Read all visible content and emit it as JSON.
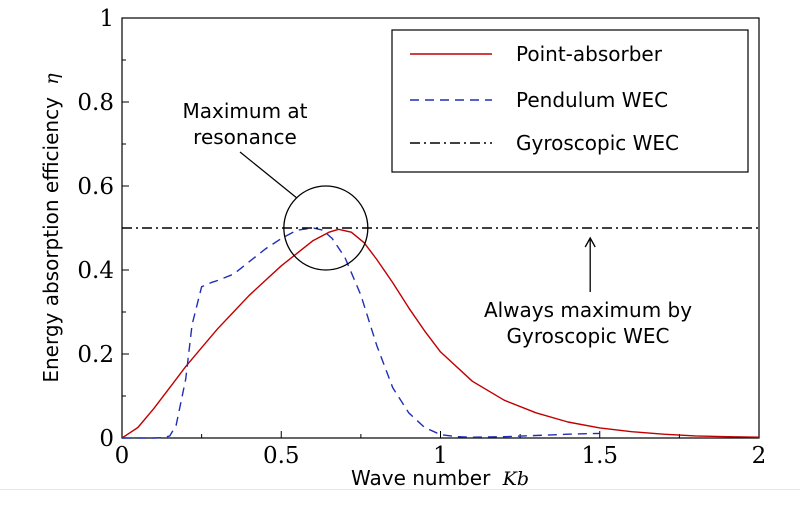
{
  "chart_data": {
    "type": "line",
    "title": "",
    "xlabel": "Wave number",
    "xlabel_symbol": "Kb",
    "ylabel": "Energy absorption efficiency",
    "ylabel_symbol": "η",
    "xlim": [
      0,
      2
    ],
    "ylim": [
      0,
      1
    ],
    "x_ticks": [
      "0",
      "0.5",
      "1",
      "1.5",
      "2"
    ],
    "y_ticks": [
      "0",
      "0.2",
      "0.4",
      "0.6",
      "0.8",
      "1"
    ],
    "grid": false,
    "legend_position": "top-right",
    "series": [
      {
        "name": "Point-absorber",
        "style": "solid",
        "color": "#c00000",
        "x": [
          0,
          0.05,
          0.1,
          0.15,
          0.2,
          0.25,
          0.3,
          0.35,
          0.4,
          0.45,
          0.5,
          0.55,
          0.6,
          0.65,
          0.68,
          0.72,
          0.76,
          0.8,
          0.85,
          0.9,
          0.95,
          1.0,
          1.1,
          1.2,
          1.3,
          1.4,
          1.5,
          1.6,
          1.7,
          1.8,
          1.9,
          2.0
        ],
        "y": [
          0,
          0.025,
          0.07,
          0.12,
          0.17,
          0.215,
          0.26,
          0.3,
          0.34,
          0.375,
          0.41,
          0.44,
          0.47,
          0.49,
          0.497,
          0.49,
          0.465,
          0.425,
          0.37,
          0.31,
          0.255,
          0.205,
          0.135,
          0.09,
          0.06,
          0.038,
          0.024,
          0.015,
          0.009,
          0.005,
          0.003,
          0.002
        ]
      },
      {
        "name": "Pendulum WEC",
        "style": "dashed",
        "color": "#1f2fb4",
        "x": [
          0,
          0.1,
          0.13,
          0.15,
          0.17,
          0.2,
          0.22,
          0.25,
          0.28,
          0.3,
          0.35,
          0.4,
          0.45,
          0.5,
          0.55,
          0.6,
          0.63,
          0.66,
          0.7,
          0.75,
          0.8,
          0.85,
          0.9,
          0.95,
          1.0,
          1.05,
          1.1,
          1.2,
          1.3,
          1.4,
          1.5
        ],
        "y": [
          0,
          0,
          0.001,
          0.005,
          0.03,
          0.14,
          0.27,
          0.36,
          0.37,
          0.375,
          0.39,
          0.42,
          0.45,
          0.475,
          0.495,
          0.5,
          0.495,
          0.475,
          0.43,
          0.34,
          0.22,
          0.12,
          0.06,
          0.025,
          0.008,
          0.003,
          0.002,
          0.003,
          0.006,
          0.009,
          0.011
        ]
      },
      {
        "name": "Gyroscopic WEC",
        "style": "dashdot",
        "color": "#000000",
        "x": [
          0,
          2
        ],
        "y": [
          0.5,
          0.5
        ]
      }
    ],
    "annotations": [
      {
        "text_lines": [
          "Maximum at",
          "resonance"
        ],
        "x": 0.64,
        "y": 0.5
      },
      {
        "text_lines": [
          "Always maximum by",
          "Gyroscopic WEC"
        ],
        "x": 1.47,
        "y": 0.5
      }
    ]
  }
}
